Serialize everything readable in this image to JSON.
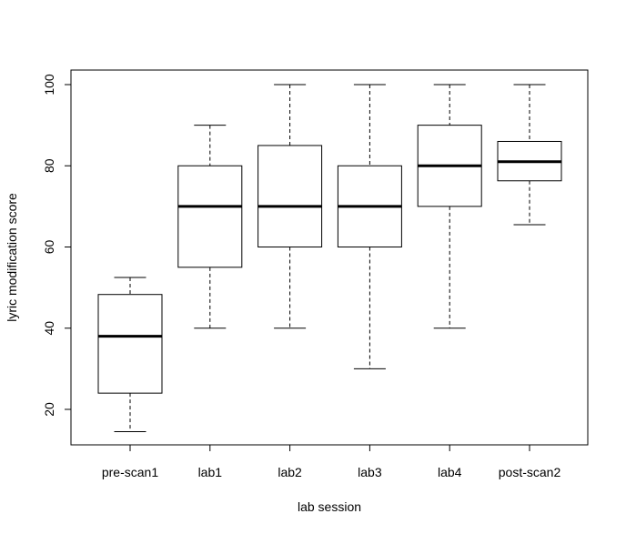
{
  "chart_data": {
    "type": "boxplot",
    "title": "",
    "xlabel": "lab session",
    "ylabel": "lyric modification score",
    "ylim": [
      10,
      105
    ],
    "y_ticks": [
      20,
      40,
      60,
      80,
      100
    ],
    "grid": false,
    "legend": "none",
    "categories": [
      "pre-scan1",
      "lab1",
      "lab2",
      "lab3",
      "lab4",
      "post-scan2"
    ],
    "boxes": [
      {
        "category": "pre-scan1",
        "whisker_low": 14.5,
        "q1": 24,
        "median": 38,
        "q3": 48.3,
        "whisker_high": 52.5
      },
      {
        "category": "lab1",
        "whisker_low": 40,
        "q1": 55,
        "median": 70,
        "q3": 80,
        "whisker_high": 90
      },
      {
        "category": "lab2",
        "whisker_low": 40,
        "q1": 60,
        "median": 70,
        "q3": 85,
        "whisker_high": 100
      },
      {
        "category": "lab3",
        "whisker_low": 30,
        "q1": 60,
        "median": 70,
        "q3": 80,
        "whisker_high": 100
      },
      {
        "category": "lab4",
        "whisker_low": 40,
        "q1": 70,
        "median": 80,
        "q3": 90,
        "whisker_high": 100
      },
      {
        "category": "post-scan2",
        "whisker_low": 65.5,
        "q1": 76.3,
        "median": 81,
        "q3": 86,
        "whisker_high": 100
      }
    ]
  }
}
